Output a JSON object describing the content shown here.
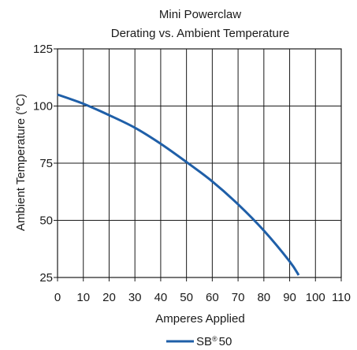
{
  "chart_data": {
    "type": "line",
    "title": "Mini Powerclaw",
    "subtitle": "Derating vs. Ambient Temperature",
    "xlabel": "Amperes Applied",
    "ylabel": "Ambient Temperature (°C)",
    "xlim": [
      0,
      110
    ],
    "ylim": [
      25,
      125
    ],
    "x_ticks": [
      0,
      10,
      20,
      30,
      40,
      50,
      60,
      70,
      80,
      90,
      100,
      110
    ],
    "x_tick_labels": [
      "0",
      "10",
      "20",
      "30",
      "40",
      "50",
      "60",
      "70",
      "80",
      "90",
      "100",
      "110"
    ],
    "y_ticks": [
      25,
      50,
      75,
      100,
      125
    ],
    "y_tick_labels": [
      "25",
      "50",
      "75",
      "100",
      "125"
    ],
    "grid": true,
    "legend_placement": "bottom-center",
    "series": [
      {
        "name": "SB® 50",
        "name_main": "SB",
        "name_sup": "®",
        "name_suffix": "50",
        "color": "#1f5fa8",
        "x": [
          0,
          10,
          20,
          30,
          40,
          50,
          60,
          70,
          80,
          90,
          93.5
        ],
        "y": [
          105,
          101,
          96,
          90.5,
          83.5,
          75.5,
          67,
          57,
          45.5,
          32,
          26
        ]
      }
    ]
  }
}
